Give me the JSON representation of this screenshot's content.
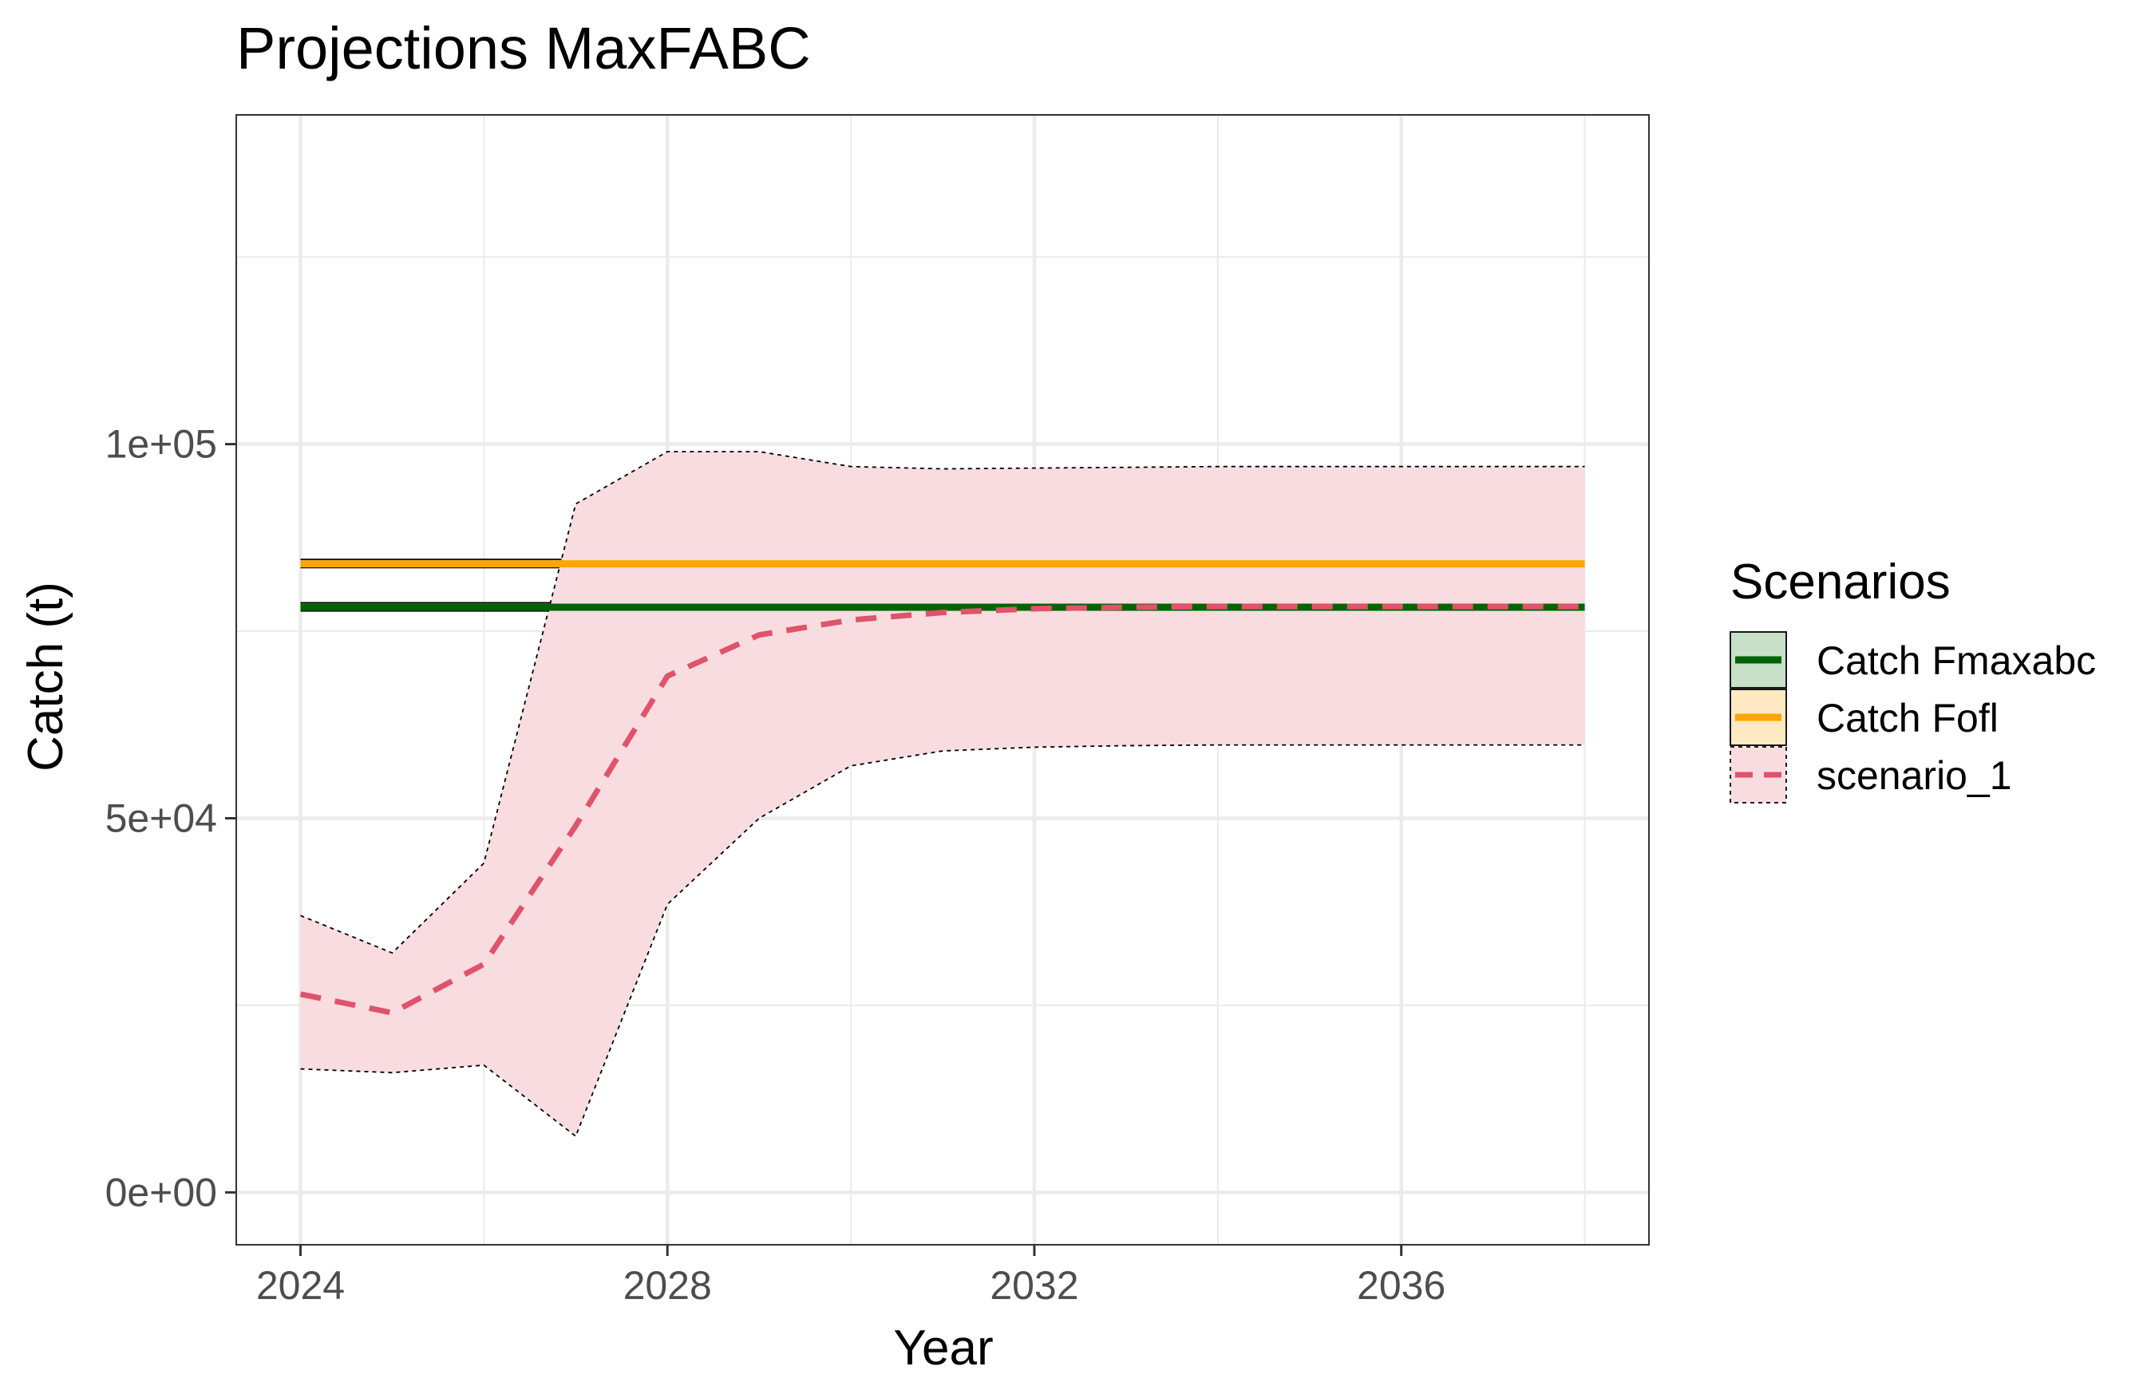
{
  "chart_data": {
    "type": "line",
    "title": "Projections MaxFABC",
    "xlabel": "Year",
    "ylabel": "Catch (t)",
    "xlim": [
      2023.3,
      2038.7
    ],
    "ylim": [
      -7000,
      144000
    ],
    "x_ticks": [
      2024,
      2028,
      2032,
      2036
    ],
    "x_tick_labels": [
      "2024",
      "2028",
      "2032",
      "2036"
    ],
    "y_ticks": [
      0,
      50000,
      100000
    ],
    "y_tick_labels": [
      "0e+00",
      "5e+04",
      "1e+05"
    ],
    "y_minor_grid": [
      25000,
      75000,
      125000
    ],
    "x_minor_grid": [
      2026,
      2030,
      2034,
      2038
    ],
    "grid": true,
    "legend": {
      "title": "Scenarios",
      "position": "right",
      "entries": [
        "Catch Fmaxabc",
        "Catch Fofl",
        "scenario_1"
      ]
    },
    "series": [
      {
        "name": "Catch Fmaxabc",
        "style": "solid",
        "color": "#006400",
        "fill": "#c8dfc8",
        "x": [
          2024,
          2038
        ],
        "values": [
          78200,
          78200
        ],
        "lower": [
          77700,
          77700
        ],
        "upper": [
          78800,
          78800
        ]
      },
      {
        "name": "Catch Fofl",
        "style": "solid",
        "color": "#FFA500",
        "fill": "#ffe9c2",
        "x": [
          2024,
          2038
        ],
        "values": [
          84000,
          84000
        ],
        "lower": [
          83500,
          83500
        ],
        "upper": [
          84600,
          84600
        ]
      },
      {
        "name": "scenario_1",
        "style": "dashed",
        "color": "#DF536B",
        "fill": "#f9dce0",
        "x": [
          2024,
          2025,
          2026,
          2027,
          2028,
          2029,
          2030,
          2031,
          2032,
          2033,
          2034,
          2035,
          2036,
          2037,
          2038
        ],
        "values": [
          26500,
          24000,
          30500,
          49000,
          69000,
          74500,
          76500,
          77500,
          78000,
          78200,
          78300,
          78300,
          78300,
          78300,
          78300
        ],
        "lower": [
          16500,
          16000,
          17000,
          7500,
          38500,
          50000,
          57000,
          59000,
          59500,
          59700,
          59800,
          59800,
          59800,
          59800,
          59800
        ],
        "upper": [
          37000,
          32000,
          44000,
          92000,
          99000,
          99000,
          97000,
          96700,
          96800,
          96900,
          97000,
          97000,
          97000,
          97000,
          97000
        ]
      }
    ]
  }
}
